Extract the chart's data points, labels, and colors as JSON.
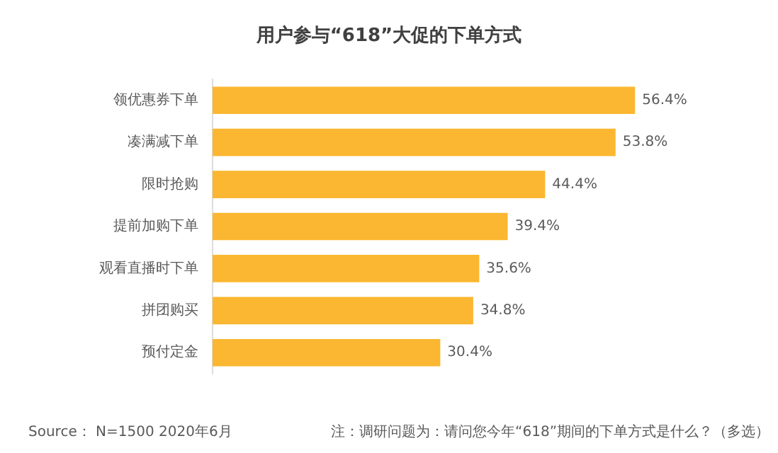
{
  "chart_data": {
    "type": "bar",
    "orientation": "horizontal",
    "title": "用户参与“618”大促的下单方式",
    "categories": [
      "领优惠券下单",
      "凑满减下单",
      "限时抢购",
      "提前加购下单",
      "观看直播时下单",
      "拼团购买",
      "预付定金"
    ],
    "values": [
      56.4,
      53.8,
      44.4,
      39.4,
      35.6,
      34.8,
      30.4
    ],
    "value_labels": [
      "56.4%",
      "53.8%",
      "44.4%",
      "39.4%",
      "35.6%",
      "34.8%",
      "30.4%"
    ],
    "color": "#fbb731",
    "tick_labels": "y",
    "legend": false,
    "annotations": [
      "Source： N=1500 2020年6月",
      "注：调研问题为：请问您今年“618”期间的下单方式是什么？（多选）"
    ]
  }
}
